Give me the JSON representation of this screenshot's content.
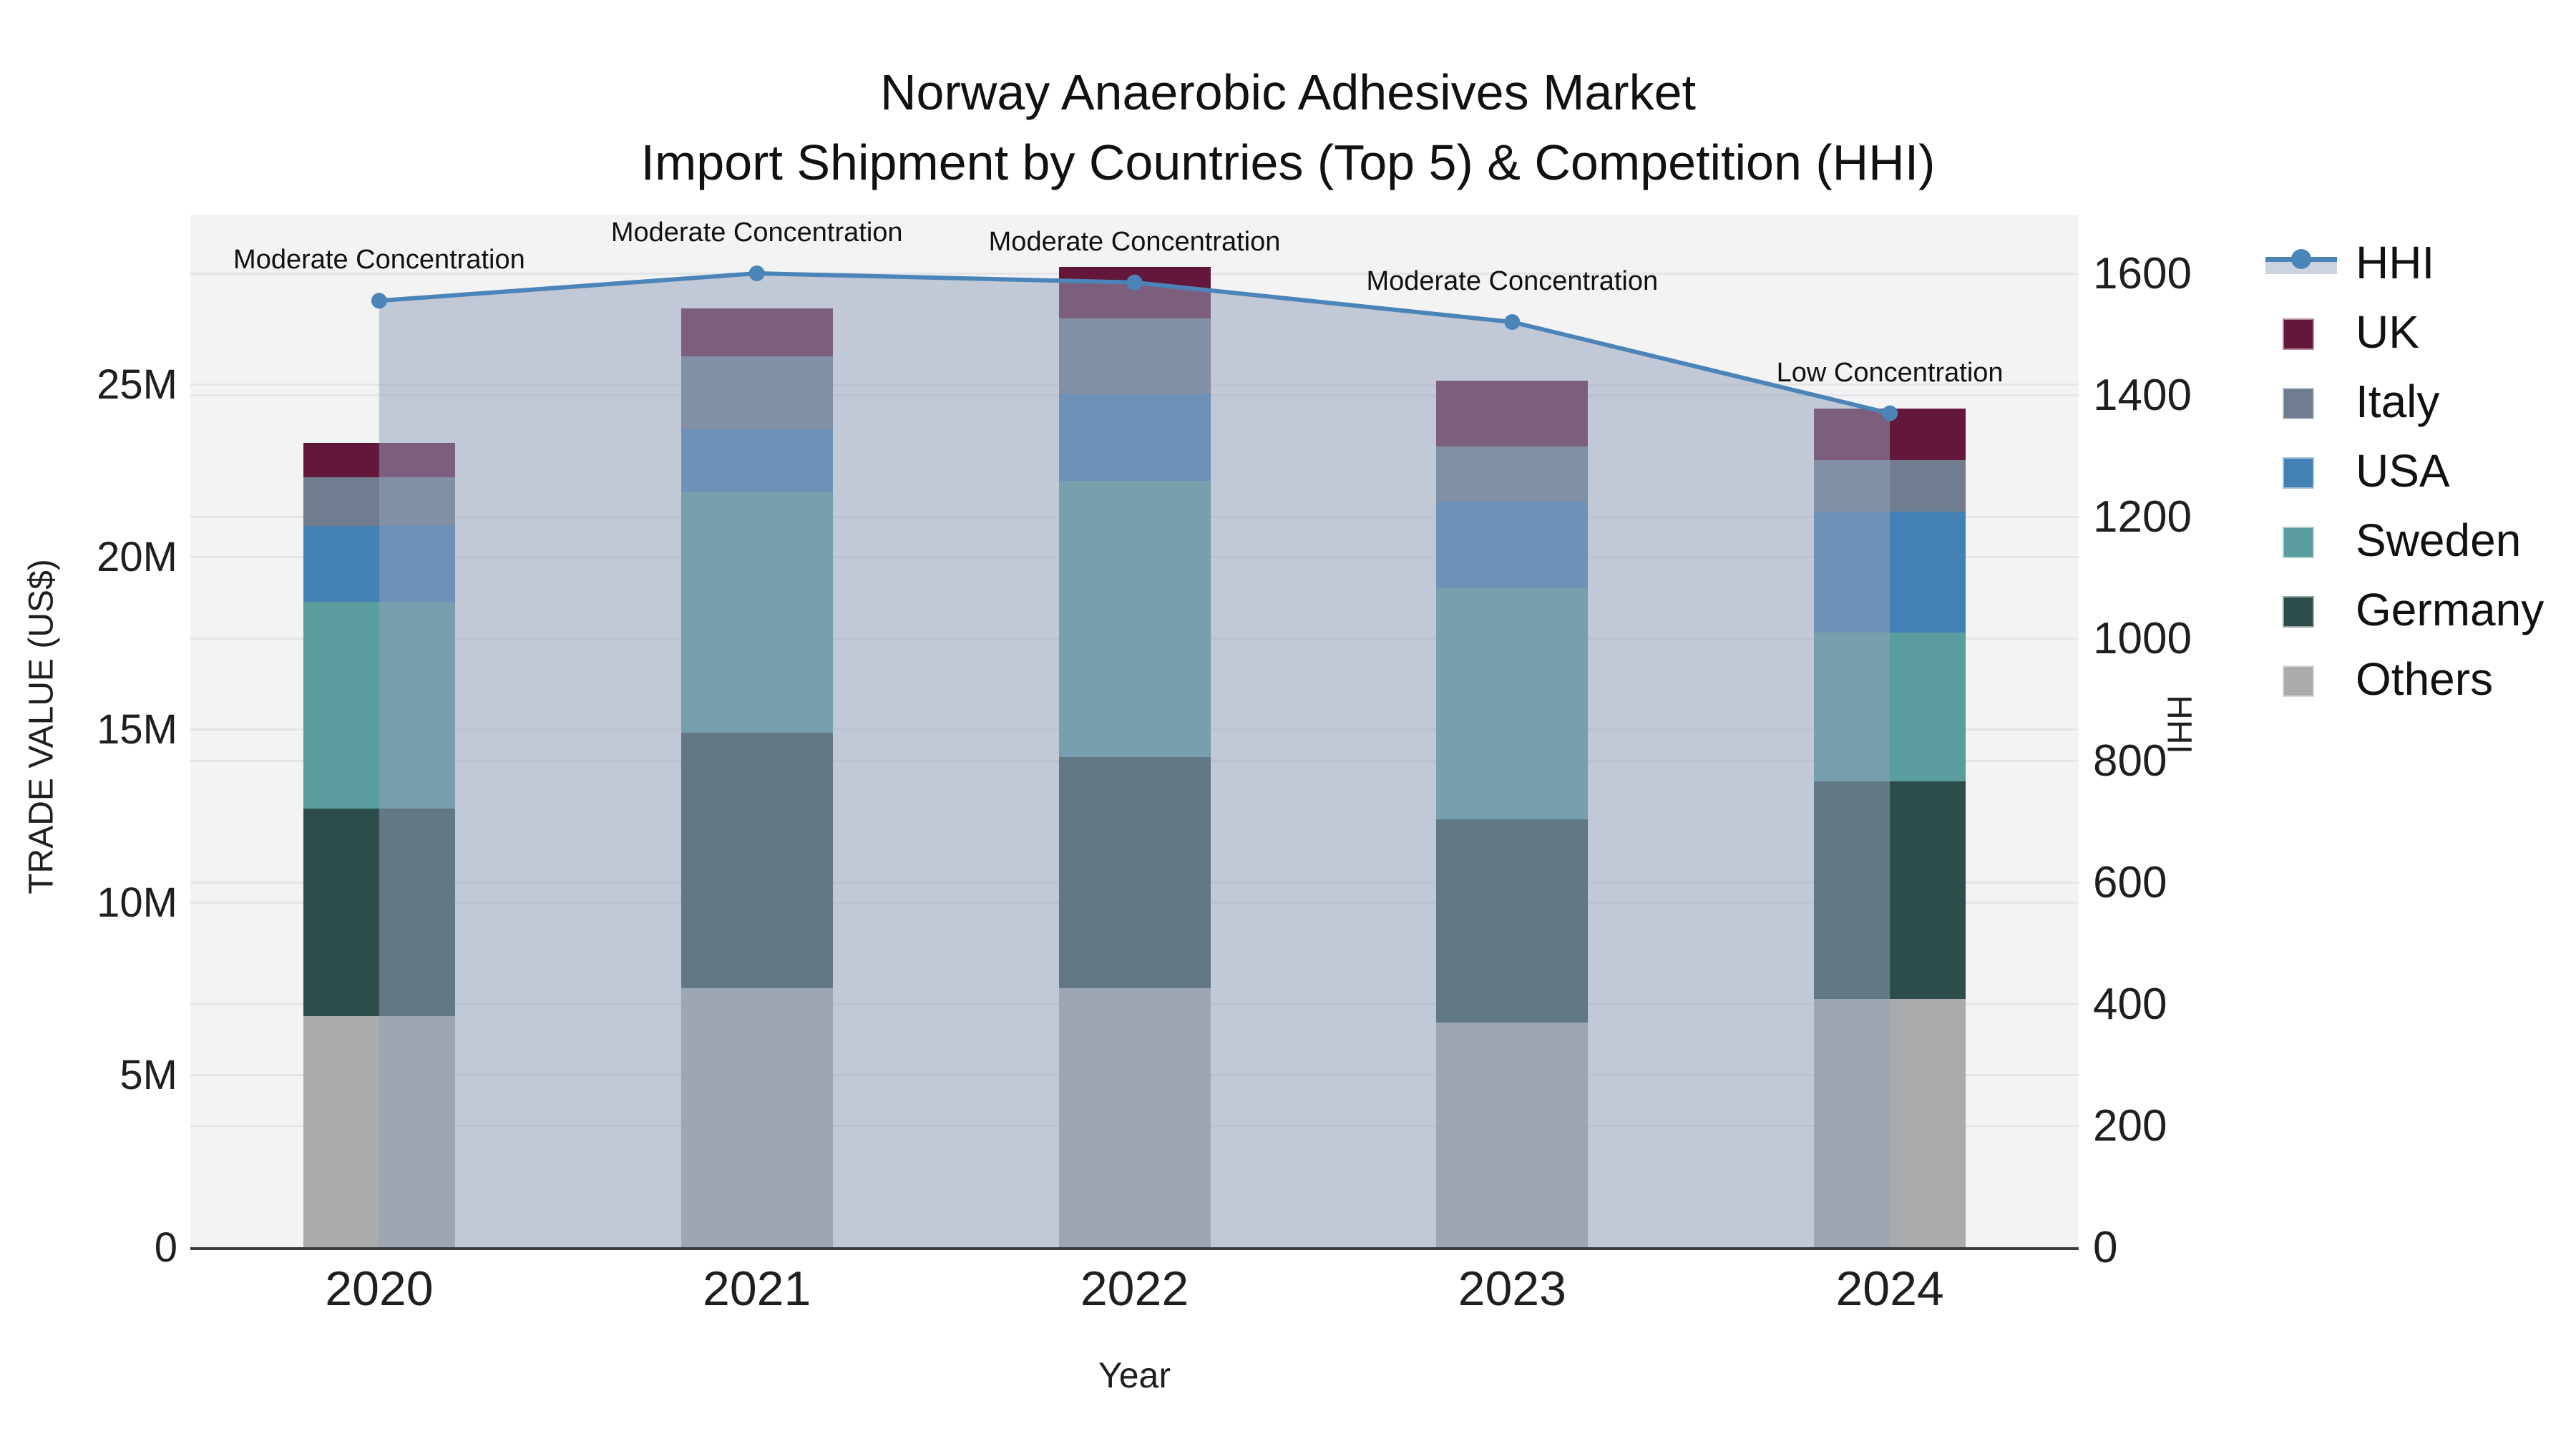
{
  "title": {
    "line1": "Norway Anaerobic Adhesives Market",
    "line2": "Import Shipment by Countries (Top 5) & Competition (HHI)"
  },
  "axes": {
    "y_left_title": "TRADE VALUE (US$)",
    "y_right_title": "HHI",
    "x_title": "Year"
  },
  "legend": {
    "items": [
      {
        "label": "HHI",
        "type": "line-fill",
        "color": "#4a84b8"
      },
      {
        "label": "UK",
        "type": "square",
        "color": "#63173a"
      },
      {
        "label": "Italy",
        "type": "square",
        "color": "#6f7d8e"
      },
      {
        "label": "USA",
        "type": "square",
        "color": "#4381b5"
      },
      {
        "label": "Sweden",
        "type": "square",
        "color": "#599d9f"
      },
      {
        "label": "Germany",
        "type": "square",
        "color": "#2c4d4a"
      },
      {
        "label": "Others",
        "type": "square",
        "color": "#a9abad"
      }
    ]
  },
  "chart_data": {
    "type": "combo-stacked-bar-line",
    "title": "Norway Anaerobic Adhesives Market Import Shipment by Countries (Top 5) & Competition (HHI)",
    "categories": [
      "2020",
      "2021",
      "2022",
      "2023",
      "2024"
    ],
    "bar_value_unit": "million US$",
    "series": [
      {
        "name": "Others",
        "color": "#a9abad",
        "values": [
          6.7,
          7.5,
          7.5,
          6.5,
          7.2
        ]
      },
      {
        "name": "Germany",
        "color": "#2c4d4a",
        "values": [
          6.0,
          7.4,
          6.7,
          5.9,
          6.3
        ]
      },
      {
        "name": "Sweden",
        "color": "#599d9f",
        "values": [
          6.0,
          7.0,
          8.0,
          6.7,
          4.3
        ]
      },
      {
        "name": "USA",
        "color": "#4381b5",
        "values": [
          2.2,
          1.8,
          2.5,
          2.5,
          3.5
        ]
      },
      {
        "name": "Italy",
        "color": "#6f7d8e",
        "values": [
          1.4,
          2.1,
          2.2,
          1.6,
          1.5
        ]
      },
      {
        "name": "UK",
        "color": "#63173a",
        "values": [
          1.0,
          1.4,
          1.5,
          1.9,
          1.5
        ]
      }
    ],
    "bar_totals": [
      23.3,
      27.2,
      28.4,
      25.1,
      24.3
    ],
    "line": {
      "name": "HHI",
      "values": [
        1555,
        1600,
        1585,
        1520,
        1370
      ],
      "color": "#4a84b8",
      "fill_color": "rgba(148,162,186,0.52)",
      "marker": "circle"
    },
    "annotations": [
      "Moderate Concentration",
      "Moderate Concentration",
      "Moderate Concentration",
      "Moderate Concentration",
      "Low Concentration"
    ],
    "y_left": {
      "label": "TRADE VALUE (US$)",
      "tick_labels": [
        "0",
        "5M",
        "10M",
        "15M",
        "20M",
        "25M"
      ],
      "tick_values_m": [
        0,
        5,
        10,
        15,
        20,
        25
      ],
      "range_m": [
        0,
        29.9
      ],
      "grid": true
    },
    "y_right": {
      "label": "HHI",
      "tick_labels": [
        "0",
        "200",
        "400",
        "600",
        "800",
        "1000",
        "1200",
        "1400",
        "1600"
      ],
      "tick_values": [
        0,
        200,
        400,
        600,
        800,
        1000,
        1200,
        1400,
        1600
      ],
      "range": [
        0,
        1697
      ],
      "grid": true
    },
    "x": {
      "label": "Year",
      "tick_labels": [
        "2020",
        "2021",
        "2022",
        "2023",
        "2024"
      ]
    },
    "plot_background": "#f3f3f4",
    "legend_position": "right"
  }
}
